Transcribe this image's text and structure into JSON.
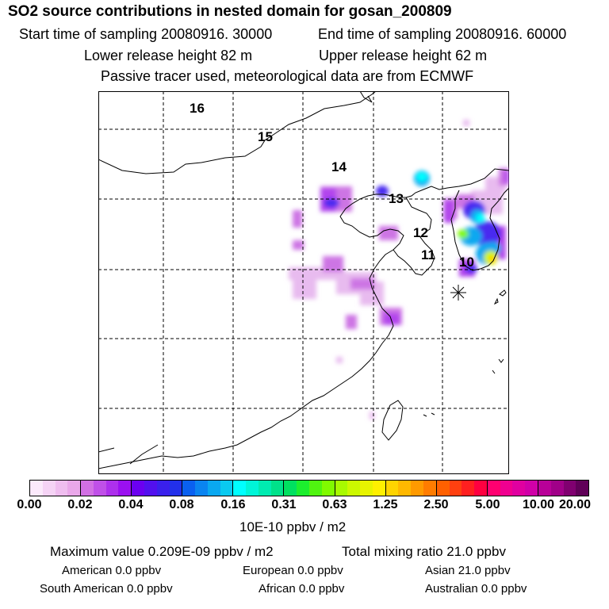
{
  "header": {
    "title": "SO2 source contributions in nested domain for gosan_200809",
    "start_time": "Start time of sampling 20080916. 30000",
    "end_time": "End time of sampling 20080916. 60000",
    "lower_release": "Lower release height   82 m",
    "upper_release": "Upper release height   62 m",
    "tracer_note": "Passive tracer used, meteorological data are from ECMWF"
  },
  "map": {
    "day_labels": [
      "16",
      "15",
      "14",
      "13",
      "12",
      "11",
      "10"
    ]
  },
  "legend": {
    "ticks": [
      "0.00",
      "0.02",
      "0.04",
      "0.08",
      "0.16",
      "0.31",
      "0.63",
      "1.25",
      "2.50",
      "5.00",
      "10.00",
      "20.00"
    ],
    "unit": "10E-10 ppbv / m2",
    "colors": {
      "g1": [
        "#fbe9fb",
        "#f5d3f5",
        "#efbdef",
        "#e9a7e9"
      ],
      "g2": [
        "#d270e4",
        "#c050e8",
        "#ad30ec",
        "#9a10f0"
      ],
      "g3": [
        "#6b00f0",
        "#5210ee",
        "#3a20ec",
        "#2230ea"
      ],
      "g4": [
        "#0a60f0",
        "#0a84f0",
        "#0aa8f0",
        "#0acaf0"
      ],
      "g5": [
        "#00ffff",
        "#00f5d8",
        "#00ebb1",
        "#00e18a"
      ],
      "g6": [
        "#00e060",
        "#1cee2e",
        "#50f410",
        "#80fa00"
      ],
      "g7": [
        "#a8fa00",
        "#ccf800",
        "#e8f400",
        "#fff000"
      ],
      "g8": [
        "#ffd400",
        "#ffb800",
        "#ff9a00",
        "#ff7c00"
      ],
      "g9": [
        "#ff6000",
        "#ff4010",
        "#ff2020",
        "#ff0040"
      ],
      "g10": [
        "#ff0070",
        "#f00090",
        "#e000a0",
        "#d000a8"
      ],
      "g11": [
        "#b80098",
        "#a00088",
        "#800070",
        "#600058"
      ]
    }
  },
  "summary": {
    "max_value": "Maximum value  0.209E-09 ppbv / m2",
    "total_mixing": "Total mixing ratio       21.0 ppbv",
    "american": "American        0.0 ppbv",
    "european": "European        0.0 ppbv",
    "asian": "Asian     21.0 ppbv",
    "south_american": "South American        0.0 ppbv",
    "african": "African        0.0 ppbv",
    "australian": "Australian        0.0 ppbv"
  }
}
